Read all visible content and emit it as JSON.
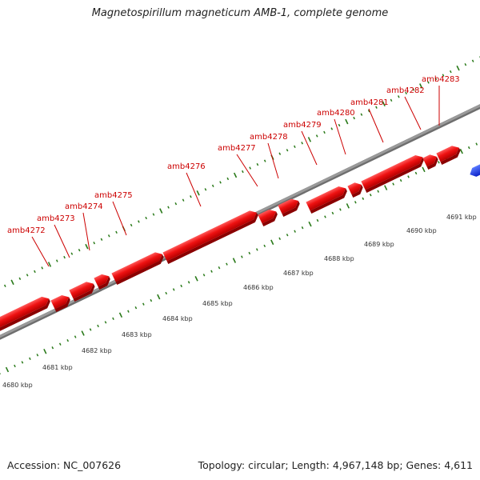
{
  "title": "Magnetospirillum magneticum AMB-1, complete genome",
  "footer": {
    "accession": "Accession: NC_007626",
    "topology": "Topology: circular; Length: 4,967,148 bp; Genes: 4,611"
  },
  "colors": {
    "gene_forward": "#ee1111",
    "gene_reverse": "#1133ee",
    "gene_label": "#cc0000",
    "backbone": "#9a9a9a",
    "ticks": "#2a7a1a",
    "kbp_label": "#333333"
  },
  "genes": [
    {
      "name": "amb4272",
      "strand": "forward"
    },
    {
      "name": "amb4273",
      "strand": "forward"
    },
    {
      "name": "amb4274",
      "strand": "forward"
    },
    {
      "name": "amb4275",
      "strand": "forward"
    },
    {
      "name": "amb4276",
      "strand": "forward"
    },
    {
      "name": "amb4277",
      "strand": "forward"
    },
    {
      "name": "amb4278",
      "strand": "forward"
    },
    {
      "name": "amb4279",
      "strand": "forward"
    },
    {
      "name": "amb4280",
      "strand": "forward"
    },
    {
      "name": "amb4281",
      "strand": "forward"
    },
    {
      "name": "amb4282",
      "strand": "forward"
    },
    {
      "name": "amb4283",
      "strand": "forward"
    }
  ],
  "reverse_gene": {
    "strand": "reverse"
  },
  "kbp_labels": [
    "4680 kbp",
    "4681 kbp",
    "4682 kbp",
    "4683 kbp",
    "4684 kbp",
    "4685 kbp",
    "4686 kbp",
    "4687 kbp",
    "4688 kbp",
    "4689 kbp",
    "4690 kbp",
    "4691 kbp"
  ]
}
